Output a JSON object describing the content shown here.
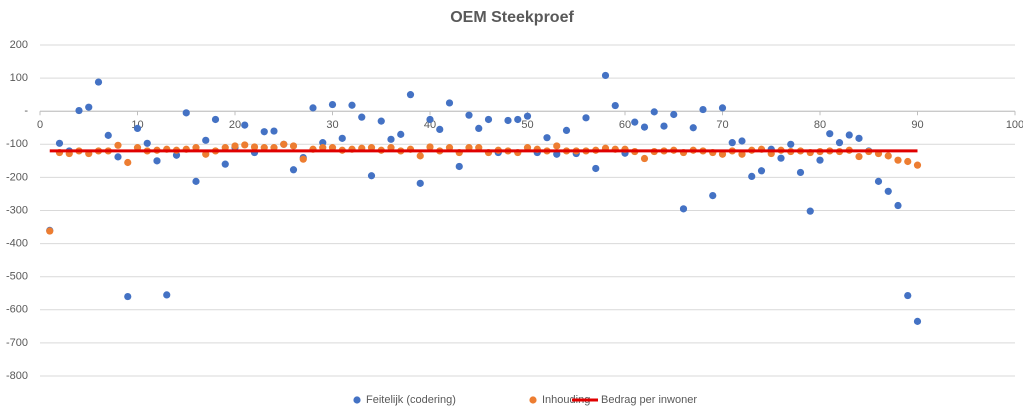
{
  "chart_data": {
    "type": "scatter",
    "title": "OEM Steekproef",
    "xlim": [
      0,
      100
    ],
    "xticks": [
      0,
      10,
      20,
      30,
      40,
      50,
      60,
      70,
      80,
      90,
      100
    ],
    "ylim": [
      -800,
      200
    ],
    "yticks": [
      200,
      100,
      {
        "value": 0,
        "label": "-"
      },
      -100,
      -200,
      -300,
      -400,
      -500,
      -600,
      -700,
      -800
    ],
    "grid": true,
    "legend": "bottom",
    "series": [
      {
        "name": "Feitelijk (codering)",
        "color": "#4472c4",
        "kind": "scatter",
        "x": [
          1,
          2,
          3,
          4,
          5,
          6,
          7,
          8,
          9,
          10,
          11,
          12,
          13,
          14,
          15,
          16,
          17,
          18,
          19,
          20,
          21,
          22,
          23,
          24,
          25,
          26,
          27,
          28,
          29,
          30,
          31,
          32,
          33,
          34,
          35,
          36,
          37,
          38,
          39,
          40,
          41,
          42,
          43,
          44,
          45,
          46,
          47,
          48,
          49,
          50,
          51,
          52,
          53,
          54,
          55,
          56,
          57,
          58,
          59,
          60,
          61,
          62,
          63,
          64,
          65,
          66,
          67,
          68,
          69,
          70,
          71,
          72,
          73,
          74,
          75,
          76,
          77,
          78,
          79,
          80,
          81,
          82,
          83,
          84,
          85,
          86,
          87,
          88,
          89,
          90
        ],
        "values": [
          -360,
          -97,
          -120,
          2,
          12,
          88,
          -73,
          -138,
          -560,
          -52,
          -97,
          -150,
          -555,
          -133,
          -5,
          -212,
          -88,
          -25,
          -160,
          -110,
          -42,
          -125,
          -62,
          -60,
          -100,
          -177,
          -140,
          10,
          -95,
          20,
          -82,
          18,
          -18,
          -195,
          -30,
          -85,
          -70,
          50,
          -218,
          -25,
          -55,
          25,
          -167,
          -12,
          -52,
          -25,
          -125,
          -28,
          -25,
          -15,
          -125,
          -80,
          -130,
          -58,
          -128,
          -20,
          -173,
          108,
          17,
          -127,
          -33,
          -48,
          -2,
          -45,
          -10,
          -295,
          -50,
          5,
          -255,
          10,
          -95,
          -90,
          -197,
          -180,
          -115,
          -142,
          -100,
          -185,
          -302,
          -148,
          -68,
          -95,
          -72,
          -82,
          -120,
          -212,
          -242,
          -285,
          -557,
          -635
        ]
      },
      {
        "name": "Inhouding",
        "color": "#ed7d31",
        "kind": "scatter",
        "x": [
          1,
          2,
          3,
          4,
          5,
          6,
          7,
          8,
          9,
          10,
          11,
          12,
          13,
          14,
          15,
          16,
          17,
          18,
          19,
          20,
          21,
          22,
          23,
          24,
          25,
          26,
          27,
          28,
          29,
          30,
          31,
          32,
          33,
          34,
          35,
          36,
          37,
          38,
          39,
          40,
          41,
          42,
          43,
          44,
          45,
          46,
          47,
          48,
          49,
          50,
          51,
          52,
          53,
          54,
          55,
          56,
          57,
          58,
          59,
          60,
          61,
          62,
          63,
          64,
          65,
          66,
          67,
          68,
          69,
          70,
          71,
          72,
          73,
          74,
          75,
          76,
          77,
          78,
          79,
          80,
          81,
          82,
          83,
          84,
          85,
          86,
          87,
          88,
          89,
          90
        ],
        "values": [
          -362,
          -125,
          -128,
          -120,
          -128,
          -120,
          -120,
          -103,
          -155,
          -110,
          -120,
          -118,
          -115,
          -118,
          -115,
          -110,
          -130,
          -120,
          -110,
          -105,
          -102,
          -108,
          -110,
          -110,
          -100,
          -105,
          -145,
          -115,
          -110,
          -110,
          -118,
          -115,
          -112,
          -110,
          -118,
          -110,
          -120,
          -115,
          -135,
          -108,
          -120,
          -110,
          -125,
          -110,
          -110,
          -125,
          -118,
          -120,
          -125,
          -110,
          -115,
          -120,
          -105,
          -120,
          -120,
          -120,
          -118,
          -112,
          -115,
          -115,
          -122,
          -143,
          -122,
          -120,
          -118,
          -125,
          -118,
          -120,
          -125,
          -130,
          -120,
          -130,
          -118,
          -115,
          -128,
          -118,
          -122,
          -120,
          -125,
          -122,
          -120,
          -122,
          -118,
          -137,
          -122,
          -128,
          -135,
          -148,
          -152,
          -163
        ]
      },
      {
        "name": "Bedrag per inwoner",
        "color": "#e00000",
        "kind": "line",
        "x": [
          1,
          90
        ],
        "values": [
          -120,
          -120
        ]
      }
    ]
  }
}
